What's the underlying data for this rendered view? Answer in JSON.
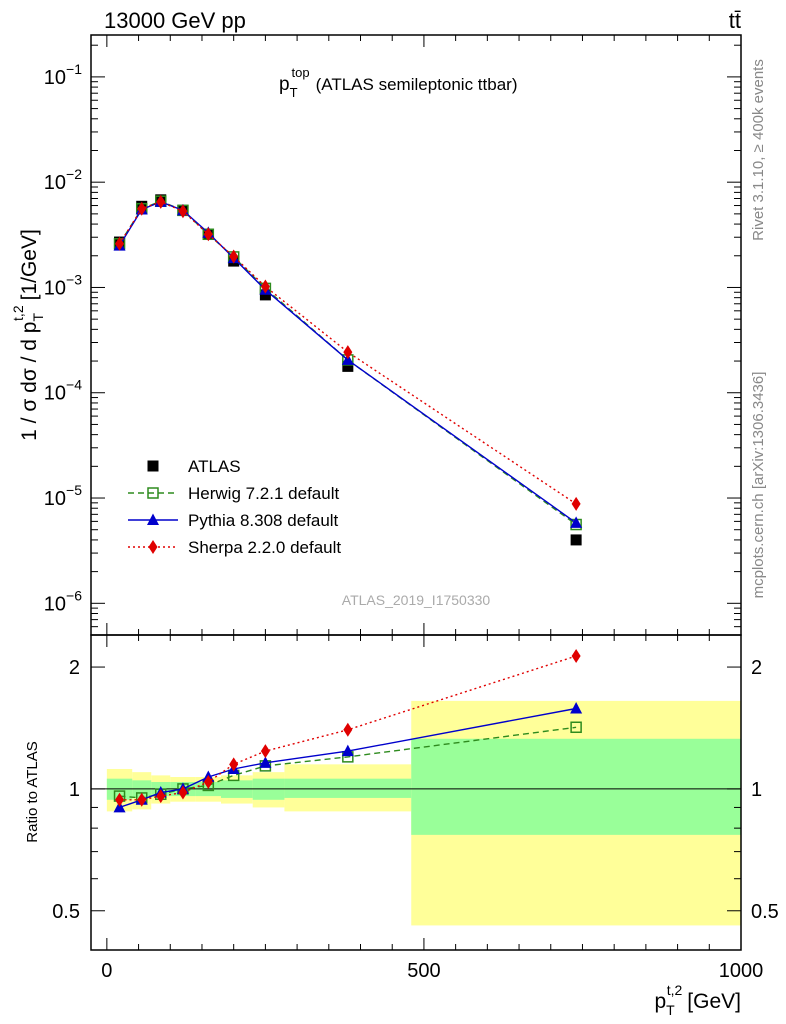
{
  "header": {
    "left": "13000 GeV pp",
    "right": "tt̄"
  },
  "side_labels": {
    "rivet": "Rivet 3.1.10, ≥ 400k events",
    "mcplots": "mcplots.cern.ch [arXiv:1306.3436]"
  },
  "chart_data": [
    {
      "type": "scatter",
      "title": "p_T^top (ATLAS semileptonic ttbar)",
      "title_main": "p",
      "title_sup": "top",
      "title_sub": "T",
      "title_rest": "(ATLAS semileptonic ttbar)",
      "analysis_label": "ATLAS_2019_I1750330",
      "ylabel": "1 / σ dσ / d p_T^t,2 [1/GeV]",
      "ylabel_text": "1 / σ dσ / d p",
      "ylabel_sup": "t,2",
      "ylabel_sub": "T",
      "ylabel_unit": "[1/GeV]",
      "yscale": "log",
      "ylim": [
        5e-07,
        0.25
      ],
      "xlim": [
        -25,
        1000
      ],
      "yticks": [
        {
          "v": 0.1,
          "m": "10",
          "e": "−1"
        },
        {
          "v": 0.01,
          "m": "10",
          "e": "−2"
        },
        {
          "v": 0.001,
          "m": "10",
          "e": "−3"
        },
        {
          "v": 0.0001,
          "m": "10",
          "e": "−4"
        },
        {
          "v": 1e-05,
          "m": "10",
          "e": "−5"
        },
        {
          "v": 1e-06,
          "m": "10",
          "e": "−6"
        }
      ],
      "legend_position": "lower-left",
      "x": [
        20,
        55,
        85,
        120,
        160,
        200,
        250,
        380,
        740
      ],
      "series": [
        {
          "name": "ATLAS",
          "color": "#000000",
          "marker": "square-filled",
          "line": "none",
          "values": [
            0.0027,
            0.0059,
            0.0068,
            0.0054,
            0.0032,
            0.00178,
            0.00085,
            0.000178,
            4e-06
          ]
        },
        {
          "name": "Herwig 7.2.1 default",
          "color": "#2e8b1e",
          "marker": "square-open",
          "line": "dashed",
          "values": [
            0.0026,
            0.0056,
            0.0066,
            0.0054,
            0.0032,
            0.00195,
            0.00098,
            0.000205,
            5.6e-06
          ]
        },
        {
          "name": "Pythia 8.308 default",
          "color": "#0000cc",
          "marker": "triangle",
          "line": "solid",
          "values": [
            0.0025,
            0.0055,
            0.0065,
            0.0054,
            0.0033,
            0.0019,
            0.00095,
            0.000205,
            5.8e-06
          ]
        },
        {
          "name": "Sherpa 2.2.0 default",
          "color": "#e00000",
          "marker": "diamond",
          "line": "dotted",
          "values": [
            0.0026,
            0.0056,
            0.0065,
            0.0053,
            0.0032,
            0.00197,
            0.00102,
            0.000243,
            8.8e-06
          ]
        }
      ]
    },
    {
      "type": "scatter",
      "ylabel": "Ratio to ATLAS",
      "xlabel": "p_T^t,2 [GeV]",
      "xlabel_text": "p",
      "xlabel_sup": "t,2",
      "xlabel_sub": "T",
      "xlabel_unit": "[GeV]",
      "yscale": "log",
      "ylim": [
        0.4,
        2.4
      ],
      "xlim": [
        -25,
        1000
      ],
      "xticks": [
        0,
        500,
        1000
      ],
      "yticks": [
        0.5,
        1,
        2
      ],
      "reference_line": 1,
      "bands": {
        "edges": [
          0,
          40,
          70,
          100,
          140,
          180,
          230,
          280,
          480,
          1000
        ],
        "inner": [
          [
            0.94,
            1.06
          ],
          [
            0.95,
            1.05
          ],
          [
            0.96,
            1.04
          ],
          [
            0.96,
            1.04
          ],
          [
            0.96,
            1.04
          ],
          [
            0.95,
            1.05
          ],
          [
            0.94,
            1.06
          ],
          [
            0.95,
            1.06
          ],
          [
            0.77,
            1.33
          ]
        ],
        "outer": [
          [
            0.88,
            1.12
          ],
          [
            0.89,
            1.1
          ],
          [
            0.92,
            1.08
          ],
          [
            0.93,
            1.07
          ],
          [
            0.93,
            1.07
          ],
          [
            0.92,
            1.08
          ],
          [
            0.9,
            1.1
          ],
          [
            0.88,
            1.15
          ],
          [
            0.46,
            1.65
          ]
        ]
      },
      "series": [
        {
          "name": "Herwig 7.2.1 default",
          "color": "#2e8b1e",
          "marker": "square-open",
          "line": "dashed",
          "values": [
            0.96,
            0.95,
            0.97,
            1.0,
            1.02,
            1.08,
            1.14,
            1.2,
            1.42
          ]
        },
        {
          "name": "Pythia 8.308 default",
          "color": "#0000cc",
          "marker": "triangle",
          "line": "solid",
          "values": [
            0.9,
            0.94,
            0.98,
            1.0,
            1.07,
            1.12,
            1.16,
            1.24,
            1.58
          ]
        },
        {
          "name": "Sherpa 2.2.0 default",
          "color": "#e00000",
          "marker": "diamond",
          "line": "dotted",
          "values": [
            0.94,
            0.94,
            0.96,
            0.98,
            1.04,
            1.15,
            1.24,
            1.4,
            2.13
          ]
        }
      ]
    }
  ]
}
